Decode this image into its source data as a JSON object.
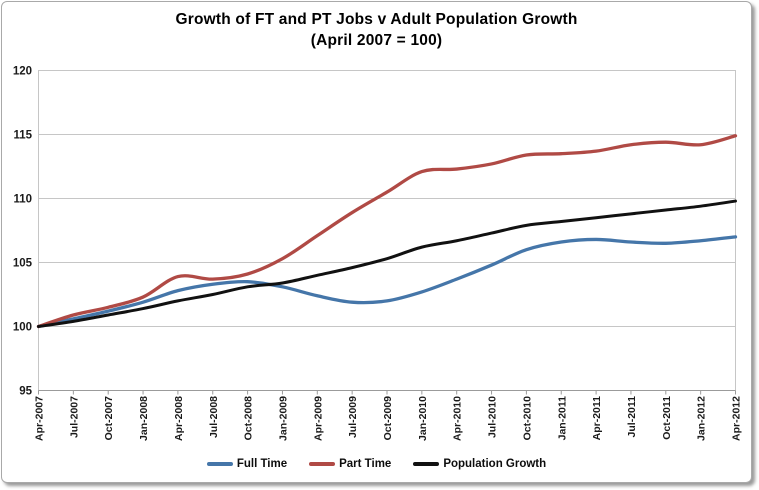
{
  "window": {
    "background": "#ffffff",
    "frame_border_color": "#a9a9a9",
    "shadow_color": "#787878"
  },
  "chart_data": {
    "type": "line",
    "title": "Growth of FT and PT Jobs v Adult Population Growth",
    "subtitle": "(April 2007 = 100)",
    "x_labels": [
      "Apr-2007",
      "Jul-2007",
      "Oct-2007",
      "Jan-2008",
      "Apr-2008",
      "Jul-2008",
      "Oct-2008",
      "Jan-2009",
      "Apr-2009",
      "Jul-2009",
      "Oct-2009",
      "Jan-2010",
      "Apr-2010",
      "Jul-2010",
      "Oct-2010",
      "Jan-2011",
      "Apr-2011",
      "Jul-2011",
      "Oct-2011",
      "Jan-2012",
      "Apr-2012"
    ],
    "y_ticks": [
      95,
      100,
      105,
      110,
      115,
      120
    ],
    "ylim": [
      95,
      120
    ],
    "grid": true,
    "legend_position": "bottom",
    "axis_color": "#9b9b9b",
    "gridline_color": "#c6c6c6",
    "plot_border_color": "#c6c6c6",
    "tick_label_color": "#1a1a1a",
    "series": [
      {
        "name": "Full Time",
        "color": "#4576a9",
        "width": 3.3,
        "values": [
          100.0,
          100.6,
          101.2,
          101.9,
          102.8,
          103.3,
          103.5,
          103.1,
          102.4,
          101.9,
          102.0,
          102.7,
          103.7,
          104.8,
          106.0,
          106.6,
          106.8,
          106.6,
          106.5,
          106.7,
          107.0
        ]
      },
      {
        "name": "Part Time",
        "color": "#b04a45",
        "width": 3.3,
        "values": [
          100.0,
          100.9,
          101.5,
          102.3,
          103.9,
          103.7,
          104.1,
          105.3,
          107.1,
          108.9,
          110.5,
          112.1,
          112.3,
          112.7,
          113.4,
          113.5,
          113.7,
          114.2,
          114.4,
          114.2,
          114.9
        ]
      },
      {
        "name": "Population Growth",
        "color": "#111111",
        "width": 3.0,
        "values": [
          100.0,
          100.4,
          100.9,
          101.4,
          102.0,
          102.5,
          103.1,
          103.4,
          104.0,
          104.6,
          105.3,
          106.2,
          106.7,
          107.3,
          107.9,
          108.2,
          108.5,
          108.8,
          109.1,
          109.4,
          109.8
        ]
      }
    ]
  }
}
